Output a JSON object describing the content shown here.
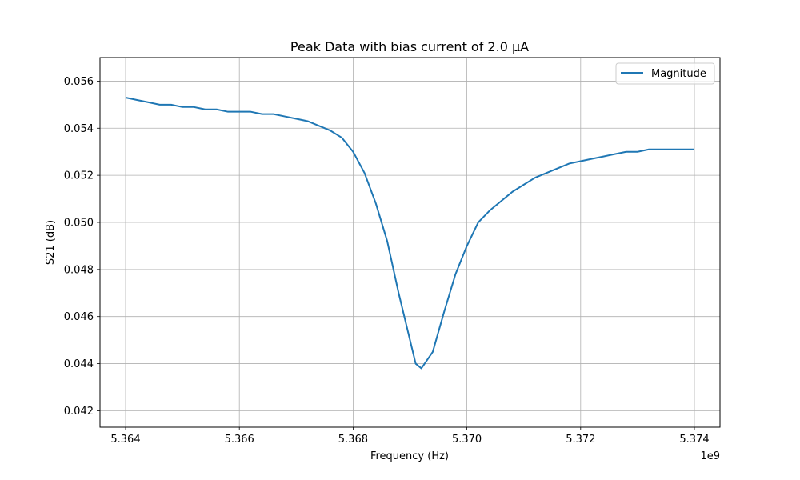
{
  "chart_data": {
    "type": "line",
    "title": "Peak Data with bias current of 2.0 μA",
    "xlabel": "Frequency (Hz)",
    "ylabel": "S21 (dB)",
    "x_offset_label": "1e9",
    "xlim": [
      5.36355,
      5.37445
    ],
    "ylim": [
      0.0413,
      0.057
    ],
    "x_tick_labels": [
      "5.364",
      "5.366",
      "5.368",
      "5.370",
      "5.372",
      "5.374"
    ],
    "y_tick_labels": [
      "0.042",
      "0.044",
      "0.046",
      "0.048",
      "0.050",
      "0.052",
      "0.054",
      "0.056"
    ],
    "grid": true,
    "legend_position": "upper right",
    "series": [
      {
        "name": "Magnitude",
        "color": "#1f77b4",
        "x": [
          5.364,
          5.3642,
          5.3644,
          5.3646,
          5.3648,
          5.365,
          5.3652,
          5.3654,
          5.3656,
          5.3658,
          5.366,
          5.3662,
          5.3664,
          5.3666,
          5.3668,
          5.367,
          5.3672,
          5.3674,
          5.3676,
          5.3678,
          5.368,
          5.3682,
          5.3684,
          5.3686,
          5.3688,
          5.369,
          5.3691,
          5.3692,
          5.3694,
          5.3696,
          5.3698,
          5.37,
          5.3702,
          5.3704,
          5.3706,
          5.3708,
          5.371,
          5.3712,
          5.3714,
          5.3716,
          5.3718,
          5.372,
          5.3722,
          5.3724,
          5.3726,
          5.3728,
          5.373,
          5.3732,
          5.3734,
          5.3736,
          5.3738,
          5.374
        ],
        "y": [
          0.0553,
          0.0552,
          0.0551,
          0.055,
          0.055,
          0.0549,
          0.0549,
          0.0548,
          0.0548,
          0.0547,
          0.0547,
          0.0547,
          0.0546,
          0.0546,
          0.0545,
          0.0544,
          0.0543,
          0.0541,
          0.0539,
          0.0536,
          0.053,
          0.0521,
          0.0508,
          0.0492,
          0.047,
          0.045,
          0.044,
          0.0438,
          0.0445,
          0.0462,
          0.0478,
          0.049,
          0.05,
          0.0505,
          0.0509,
          0.0513,
          0.0516,
          0.0519,
          0.0521,
          0.0523,
          0.0525,
          0.0526,
          0.0527,
          0.0528,
          0.0529,
          0.053,
          0.053,
          0.0531,
          0.0531,
          0.0531,
          0.0531,
          0.0531
        ]
      }
    ]
  }
}
